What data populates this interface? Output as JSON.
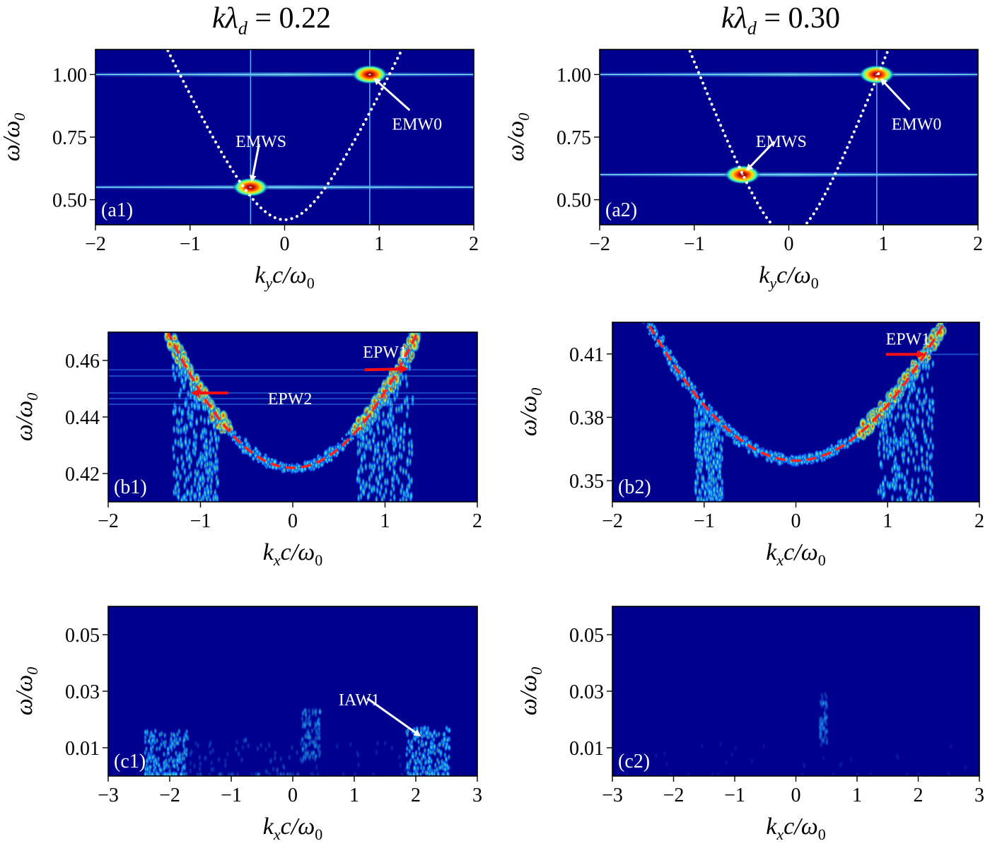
{
  "column_titles": {
    "left": {
      "lhs": "kλ",
      "sub": "d",
      "rhs": "= 0.22"
    },
    "right": {
      "lhs": "kλ",
      "sub": "d",
      "rhs": "= 0.30"
    }
  },
  "colors": {
    "background": "#00008f",
    "dispersion_white": "#ffffff",
    "dispersion_red": "#ff2020",
    "arrow_red": "#ff1010"
  },
  "chart_data": [
    {
      "id": "a1",
      "type": "heatmap",
      "panel_label": "(a1)",
      "xlabel": {
        "base": "k",
        "sub": "y",
        "tail": "c/ω",
        "tail_sub": "0"
      },
      "ylabel": {
        "base": "ω/ω",
        "sub": "0"
      },
      "xlim": [
        -2,
        2
      ],
      "ylim": [
        0.4,
        1.1
      ],
      "xticks": [
        -2,
        -1,
        0,
        1,
        2
      ],
      "xtick_labels": [
        "−2",
        "−1",
        "0",
        "1",
        "2"
      ],
      "yticks": [
        0.5,
        0.75,
        1.0
      ],
      "ytick_labels": [
        "0.50",
        "0.75",
        "1.00"
      ],
      "dispersion": {
        "style": "white-dotted",
        "w0": 0.42,
        "c2": 0.6716
      },
      "features": [
        {
          "label": "EMW0",
          "x": 0.9,
          "y": 1.0,
          "text_x": 1.4,
          "text_y": 0.78
        },
        {
          "label": "EMWS",
          "x": -0.36,
          "y": 0.55,
          "text_x": -0.25,
          "text_y": 0.71
        }
      ],
      "horizontal_lines": [
        1.0,
        0.55
      ],
      "vertical_lines": [
        0.9,
        -0.36
      ]
    },
    {
      "id": "a2",
      "type": "heatmap",
      "panel_label": "(a2)",
      "xlabel": {
        "base": "k",
        "sub": "y",
        "tail": "c/ω",
        "tail_sub": "0"
      },
      "ylabel": {
        "base": "ω/ω",
        "sub": "0"
      },
      "xlim": [
        -2,
        2
      ],
      "ylim": [
        0.4,
        1.1
      ],
      "xticks": [
        -2,
        -1,
        0,
        1,
        2
      ],
      "xtick_labels": [
        "−2",
        "−1",
        "0",
        "1",
        "2"
      ],
      "yticks": [
        0.5,
        0.75,
        1.0
      ],
      "ytick_labels": [
        "0.50",
        "0.75",
        "1.00"
      ],
      "dispersion": {
        "style": "white-dotted",
        "w0": 0.36,
        "c2": 0.975
      },
      "features": [
        {
          "label": "EMW0",
          "x": 0.93,
          "y": 1.0,
          "text_x": 1.35,
          "text_y": 0.78
        },
        {
          "label": "EMWS",
          "x": -0.49,
          "y": 0.6,
          "text_x": -0.08,
          "text_y": 0.71
        }
      ],
      "horizontal_lines": [
        1.0,
        0.6
      ],
      "vertical_lines": [
        0.93
      ]
    },
    {
      "id": "b1",
      "type": "heatmap",
      "panel_label": "(b1)",
      "xlabel": {
        "base": "k",
        "sub": "x",
        "tail": "c/ω",
        "tail_sub": "0"
      },
      "ylabel": {
        "base": "ω/ω",
        "sub": "0"
      },
      "xlim": [
        -2,
        2
      ],
      "ylim": [
        0.41,
        0.47
      ],
      "xticks": [
        -2,
        -1,
        0,
        1,
        2
      ],
      "xtick_labels": [
        "−2",
        "−1",
        "0",
        "1",
        "2"
      ],
      "yticks": [
        0.42,
        0.44,
        0.46
      ],
      "ytick_labels": [
        "0.42",
        "0.44",
        "0.46"
      ],
      "dispersion": {
        "style": "red-dashed",
        "w0": 0.422,
        "c2": 0.0234
      },
      "features": [
        {
          "label": "EPW1",
          "x": 1.26,
          "y": 0.457,
          "text_x": 0.76,
          "text_y": 0.461,
          "arrow_from_x": 0.78,
          "arrow_from_y": 0.4567
        },
        {
          "label": "EPW2",
          "x": -1.05,
          "y": 0.4485,
          "text_x": -0.27,
          "text_y": 0.4445,
          "arrow_from_x": -0.7,
          "arrow_from_y": 0.4485
        }
      ]
    },
    {
      "id": "b2",
      "type": "heatmap",
      "panel_label": "(b2)",
      "xlabel": {
        "base": "k",
        "sub": "x",
        "tail": "c/ω",
        "tail_sub": "0"
      },
      "ylabel": {
        "base": "ω/ω",
        "sub": "0"
      },
      "xlim": [
        -2,
        2
      ],
      "ylim": [
        0.34,
        0.425
      ],
      "xticks": [
        -2,
        -1,
        0,
        1,
        2
      ],
      "xtick_labels": [
        "−2",
        "−1",
        "0",
        "1",
        "2"
      ],
      "yticks": [
        0.35,
        0.38,
        0.41
      ],
      "ytick_labels": [
        "0.35",
        "0.38",
        "0.41"
      ],
      "dispersion": {
        "style": "red-dashed",
        "w0": 0.3595,
        "c2": 0.0196
      },
      "features": [
        {
          "label": "EPW1",
          "x": 1.42,
          "y": 0.4098,
          "text_x": 0.98,
          "text_y": 0.4145,
          "arrow_from_x": 0.98,
          "arrow_from_y": 0.4098
        }
      ]
    },
    {
      "id": "c1",
      "type": "heatmap",
      "panel_label": "(c1)",
      "xlabel": {
        "base": "k",
        "sub": "x",
        "tail": "c/ω",
        "tail_sub": "0"
      },
      "ylabel": {
        "base": "ω/ω",
        "sub": "0"
      },
      "xlim": [
        -3,
        3
      ],
      "ylim": [
        0.0,
        0.06
      ],
      "xticks": [
        -3,
        -2,
        -1,
        0,
        1,
        2,
        3
      ],
      "xtick_labels": [
        "−3",
        "−2",
        "−1",
        "0",
        "1",
        "2",
        "3"
      ],
      "yticks": [
        0.01,
        0.03,
        0.05
      ],
      "ytick_labels": [
        "0.01",
        "0.03",
        "0.05"
      ],
      "features": [
        {
          "label": "IAW1",
          "x": 2.15,
          "y": 0.013,
          "text_x": 1.08,
          "text_y": 0.025
        }
      ]
    },
    {
      "id": "c2",
      "type": "heatmap",
      "panel_label": "(c2)",
      "xlabel": {
        "base": "k",
        "sub": "x",
        "tail": "c/ω",
        "tail_sub": "0"
      },
      "ylabel": {
        "base": "ω/ω",
        "sub": "0"
      },
      "xlim": [
        -3,
        3
      ],
      "ylim": [
        0.0,
        0.06
      ],
      "xticks": [
        -3,
        -2,
        -1,
        0,
        1,
        2,
        3
      ],
      "xtick_labels": [
        "−3",
        "−2",
        "−1",
        "0",
        "1",
        "2",
        "3"
      ],
      "yticks": [
        0.01,
        0.03,
        0.05
      ],
      "ytick_labels": [
        "0.01",
        "0.03",
        "0.05"
      ],
      "features": []
    }
  ]
}
